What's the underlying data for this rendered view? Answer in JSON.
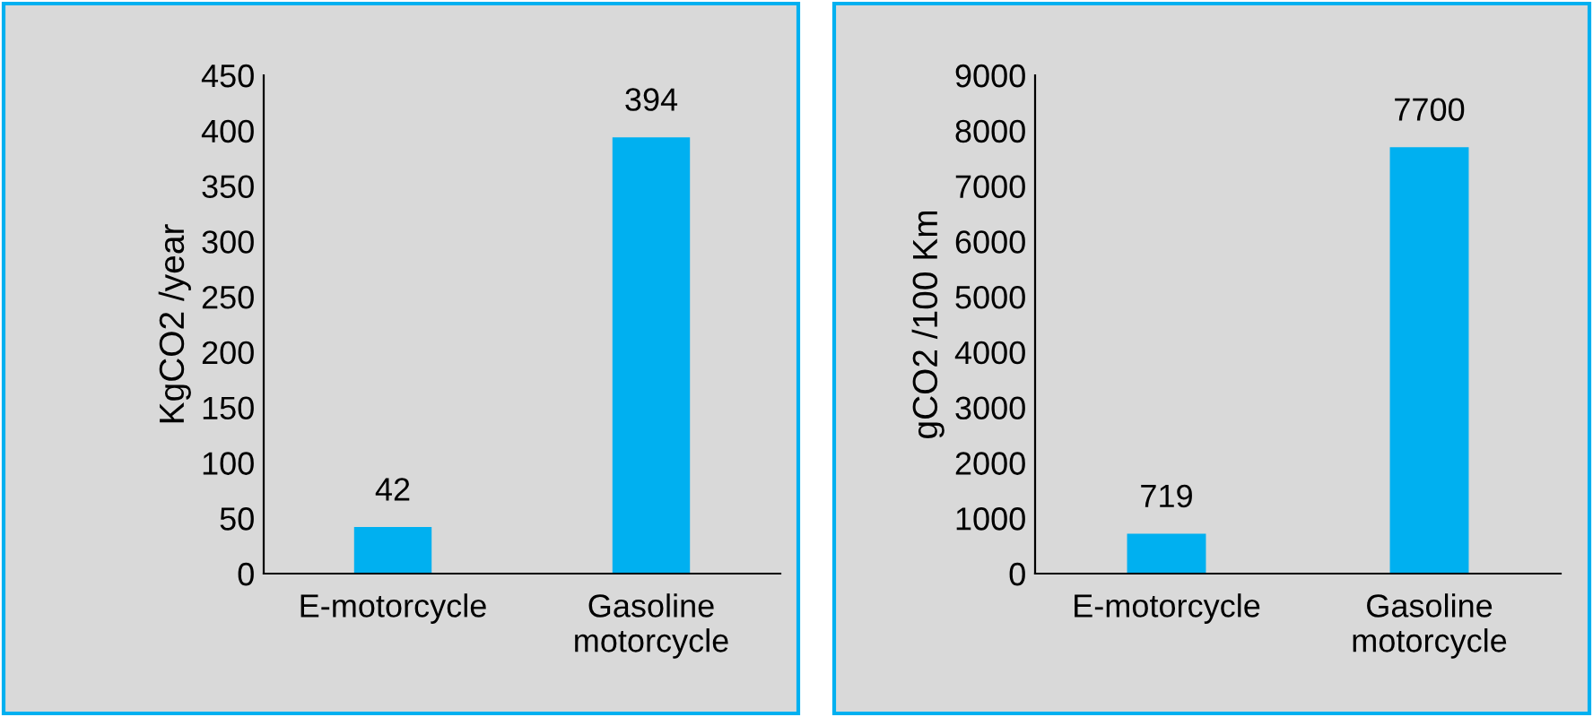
{
  "chart_data": [
    {
      "type": "bar",
      "ylabel": "KgCO2 /year",
      "categories": [
        "E-motorcycle",
        "Gasoline\nmotorcycle"
      ],
      "values": [
        42,
        394
      ],
      "color": "#00b0f0",
      "ylim": [
        0,
        450
      ],
      "yticks": [
        0,
        50,
        100,
        150,
        200,
        250,
        300,
        350,
        400,
        450
      ],
      "data_labels": true,
      "grid": false
    },
    {
      "type": "bar",
      "ylabel": "gCO2 /100 Km",
      "categories": [
        "E-motorcycle",
        "Gasoline\nmotorcycle"
      ],
      "values": [
        719,
        7700
      ],
      "color": "#00b0f0",
      "ylim": [
        0,
        9000
      ],
      "yticks": [
        0,
        1000,
        2000,
        3000,
        4000,
        5000,
        6000,
        7000,
        8000,
        9000
      ],
      "data_labels": true,
      "grid": false
    }
  ]
}
